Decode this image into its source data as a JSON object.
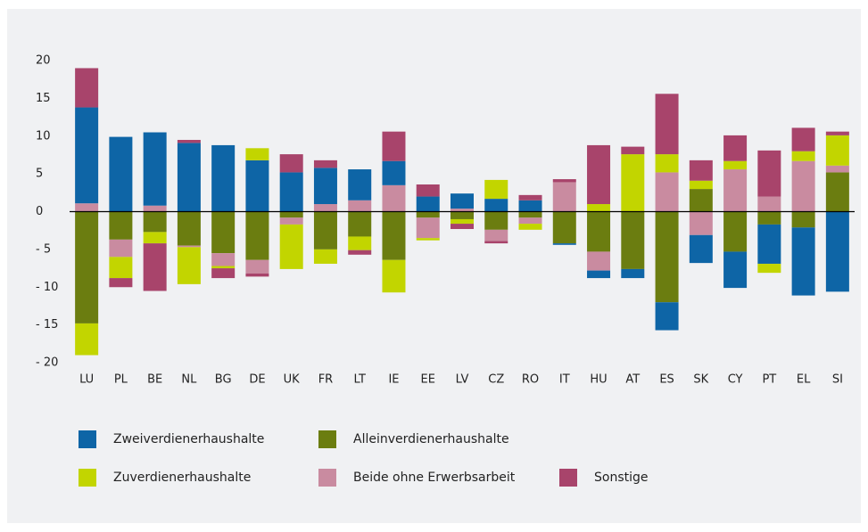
{
  "chart_data": {
    "type": "bar",
    "stacked": true,
    "categories": [
      "LU",
      "PL",
      "BE",
      "NL",
      "BG",
      "DE",
      "UK",
      "FR",
      "LT",
      "IE",
      "EE",
      "LV",
      "CZ",
      "RO",
      "IT",
      "HU",
      "AT",
      "ES",
      "SK",
      "CY",
      "PT",
      "EL",
      "SI"
    ],
    "series": [
      {
        "name": "Zweiverdienerhaushalte",
        "color": "#0e65a6",
        "values": [
          12.7,
          9.9,
          9.7,
          9.1,
          8.8,
          6.8,
          5.2,
          4.8,
          4.1,
          3.2,
          2.0,
          2.0,
          1.7,
          1.5,
          -0.2,
          -1.0,
          -1.2,
          -3.7,
          -3.7,
          -4.8,
          -5.2,
          -9.0,
          -10.6
        ]
      },
      {
        "name": "Alleinverdienerhaushalte",
        "color": "#6b7d10",
        "values": [
          -14.8,
          -3.7,
          -2.7,
          -4.5,
          -5.5,
          -6.4,
          -0.8,
          -5.0,
          -3.3,
          -6.4,
          -0.8,
          -1.0,
          -2.4,
          -0.8,
          -4.2,
          -5.3,
          -7.6,
          -12.0,
          3.0,
          -5.3,
          -1.7,
          -2.1,
          5.2
        ]
      },
      {
        "name": "Zuverdienerhaushalte",
        "color": "#c2d500",
        "values": [
          -4.2,
          -2.8,
          -1.5,
          -4.9,
          -0.3,
          1.6,
          -5.9,
          -1.9,
          -1.8,
          -4.3,
          -0.3,
          -0.6,
          2.5,
          -0.8,
          0,
          1.0,
          7.6,
          2.4,
          1.1,
          1.1,
          -1.2,
          1.3,
          4.0
        ]
      },
      {
        "name": "Beide ohne Erwerbsarbeit",
        "color": "#c98ba0",
        "values": [
          1.1,
          -2.3,
          0.8,
          -0.2,
          -1.7,
          -1.8,
          -0.9,
          1.0,
          1.5,
          3.5,
          -2.7,
          0.4,
          -1.5,
          -0.8,
          3.9,
          -2.5,
          0,
          5.2,
          -3.1,
          5.6,
          2.0,
          6.7,
          0.9
        ]
      },
      {
        "name": "Sonstige",
        "color": "#a8446b",
        "values": [
          5.2,
          -1.2,
          -6.3,
          0.4,
          -1.3,
          -0.4,
          2.4,
          1.0,
          -0.6,
          3.9,
          1.6,
          -0.7,
          -0.3,
          0.7,
          0.4,
          7.8,
          1.0,
          8.0,
          2.7,
          3.4,
          6.1,
          3.1,
          0.5
        ]
      }
    ],
    "ylim": [
      -20,
      20
    ],
    "yticks": [
      {
        "value": -20,
        "label": "- 20"
      },
      {
        "value": -15,
        "label": "- 15"
      },
      {
        "value": -10,
        "label": "- 10"
      },
      {
        "value": -5,
        "label": "- 5"
      },
      0,
      5,
      10,
      15,
      20
    ]
  }
}
